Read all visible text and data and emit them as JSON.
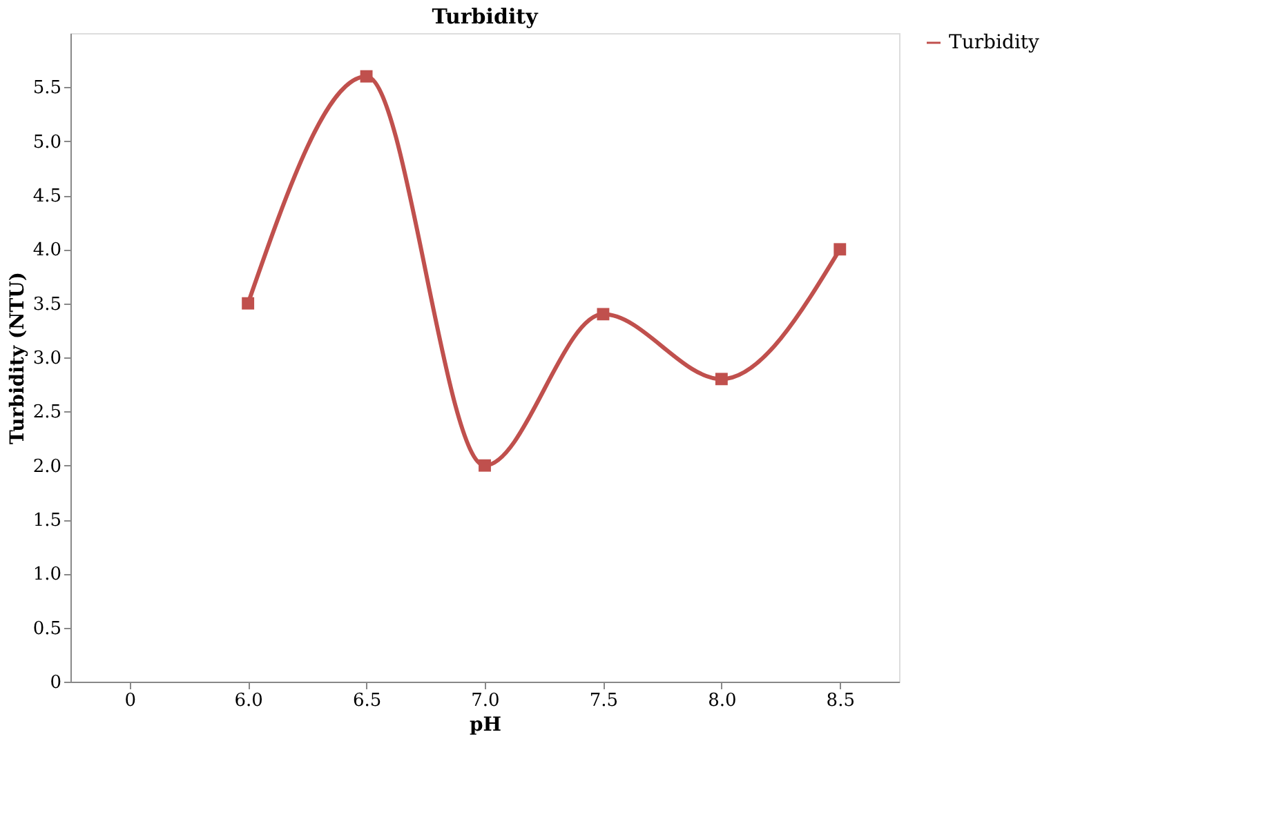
{
  "chart_data": {
    "type": "line",
    "title": "Turbidity",
    "xlabel": "pH",
    "ylabel": "Turbidity (NTU)",
    "categories": [
      "0",
      "6.0",
      "6.5",
      "7.0",
      "7.5",
      "8.0",
      "8.5"
    ],
    "series": [
      {
        "name": "Turbidity",
        "color": "#c0504d",
        "values": [
          null,
          3.5,
          5.6,
          2.0,
          3.4,
          2.8,
          4.0
        ]
      }
    ],
    "ylim": [
      0,
      6
    ],
    "yticks": [
      0,
      0.5,
      {
        "value": 1,
        "label": "1.0"
      },
      1.5,
      {
        "value": 2,
        "label": "2.0"
      },
      2.5,
      {
        "value": 3,
        "label": "3.0"
      },
      3.5,
      {
        "value": 4,
        "label": "4.0"
      },
      4.5,
      {
        "value": 5,
        "label": "5.0"
      },
      5.5
    ],
    "marker": "square",
    "line_style": "solid",
    "legend": "right",
    "grid": false
  }
}
